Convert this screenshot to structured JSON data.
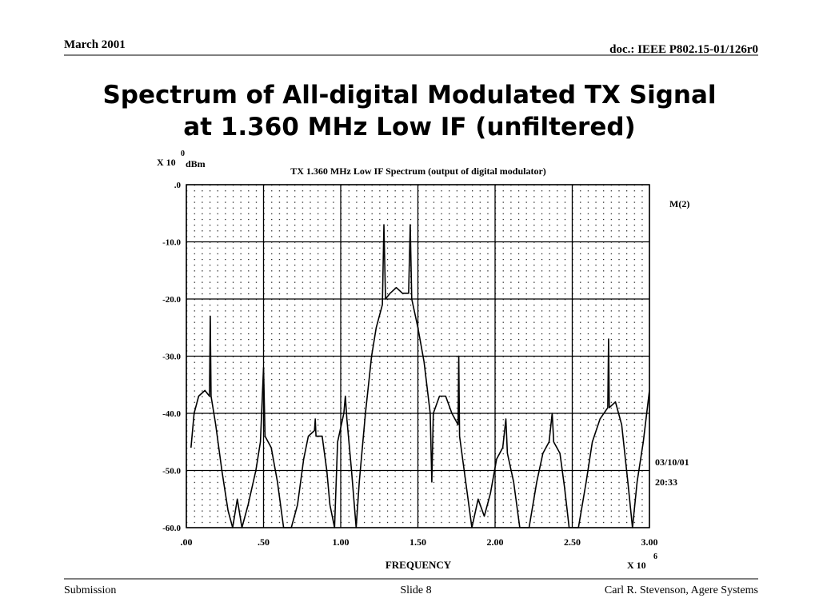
{
  "header": {
    "date": "March 2001",
    "doc": "doc.: IEEE P802.15-01/126r0"
  },
  "title": [
    "Spectrum of All-digital Modulated TX Signal",
    "at 1.360 MHz Low IF (unfiltered)"
  ],
  "footer": {
    "left": "Submission",
    "center": "Slide 8",
    "right": "Carl R. Stevenson, Agere Systems"
  },
  "chart_data": {
    "type": "line",
    "title": "TX 1.360 MHz Low IF Spectrum (output of digital modulator)",
    "y_label": {
      "base": "X 10",
      "exponent": "0",
      "unit": "dBm"
    },
    "x_label": "FREQUENCY",
    "x_scale": {
      "base": "X 10",
      "exponent": "6"
    },
    "annotations": [
      "M(2)",
      "03/10/01",
      "20:33"
    ],
    "color": "#000000",
    "grid": true,
    "xlim": [
      0,
      3
    ],
    "ylim": [
      -60,
      0
    ],
    "xticks": [
      {
        "value": 0,
        "label": ".00"
      },
      {
        "value": 0.5,
        "label": ".50"
      },
      {
        "value": 1,
        "label": "1.00"
      },
      {
        "value": 1.5,
        "label": "1.50"
      },
      {
        "value": 2,
        "label": "2.00"
      },
      {
        "value": 2.5,
        "label": "2.50"
      },
      {
        "value": 3,
        "label": "3.00"
      }
    ],
    "yticks": [
      {
        "value": 0,
        "label": ".0"
      },
      {
        "value": -10,
        "label": "-10.0"
      },
      {
        "value": -20,
        "label": "-20.0"
      },
      {
        "value": -30,
        "label": "-30.0"
      },
      {
        "value": -40,
        "label": "-40.0"
      },
      {
        "value": -50,
        "label": "-50.0"
      },
      {
        "value": -60,
        "label": "-60.0"
      }
    ],
    "x": [
      0.03,
      0.05,
      0.08,
      0.12,
      0.15,
      0.155,
      0.16,
      0.19,
      0.23,
      0.27,
      0.3,
      0.33,
      0.36,
      0.4,
      0.45,
      0.48,
      0.5,
      0.51,
      0.55,
      0.59,
      0.63,
      0.68,
      0.72,
      0.76,
      0.79,
      0.83,
      0.835,
      0.84,
      0.88,
      0.91,
      0.93,
      0.96,
      0.98,
      1.02,
      1.03,
      1.04,
      1.07,
      1.1,
      1.12,
      1.16,
      1.2,
      1.23,
      1.27,
      1.28,
      1.29,
      1.32,
      1.36,
      1.4,
      1.44,
      1.45,
      1.46,
      1.5,
      1.54,
      1.58,
      1.59,
      1.6,
      1.64,
      1.68,
      1.72,
      1.76,
      1.765,
      1.77,
      1.81,
      1.85,
      1.89,
      1.93,
      1.97,
      2.01,
      2.05,
      2.07,
      2.08,
      2.12,
      2.16,
      2.22,
      2.27,
      2.31,
      2.35,
      2.37,
      2.38,
      2.42,
      2.45,
      2.48,
      2.54,
      2.59,
      2.63,
      2.68,
      2.73,
      2.735,
      2.74,
      2.78,
      2.82,
      2.86,
      2.89,
      2.92,
      2.96,
      3.0
    ],
    "values": [
      -46,
      -40,
      -37,
      -36,
      -37,
      -23,
      -37,
      -42,
      -50,
      -57,
      -60,
      -55,
      -60,
      -56,
      -50,
      -45,
      -32,
      -44,
      -46,
      -52,
      -60,
      -60,
      -56,
      -48,
      -44,
      -43,
      -41,
      -44,
      -44,
      -50,
      -56,
      -60,
      -45,
      -40,
      -37,
      -41,
      -50,
      -60,
      -52,
      -40,
      -30,
      -25,
      -21,
      -7,
      -20,
      -19,
      -18,
      -19,
      -19,
      -7,
      -20,
      -25,
      -31,
      -40,
      -52,
      -40,
      -37,
      -37,
      -40,
      -42,
      -30,
      -44,
      -52,
      -60,
      -55,
      -58,
      -54,
      -48,
      -46,
      -41,
      -47,
      -52,
      -60,
      -60,
      -52,
      -47,
      -45,
      -40,
      -45,
      -47,
      -53,
      -60,
      -60,
      -52,
      -45,
      -41,
      -39,
      -27,
      -39,
      -38,
      -42,
      -52,
      -60,
      -52,
      -45,
      -36
    ]
  }
}
